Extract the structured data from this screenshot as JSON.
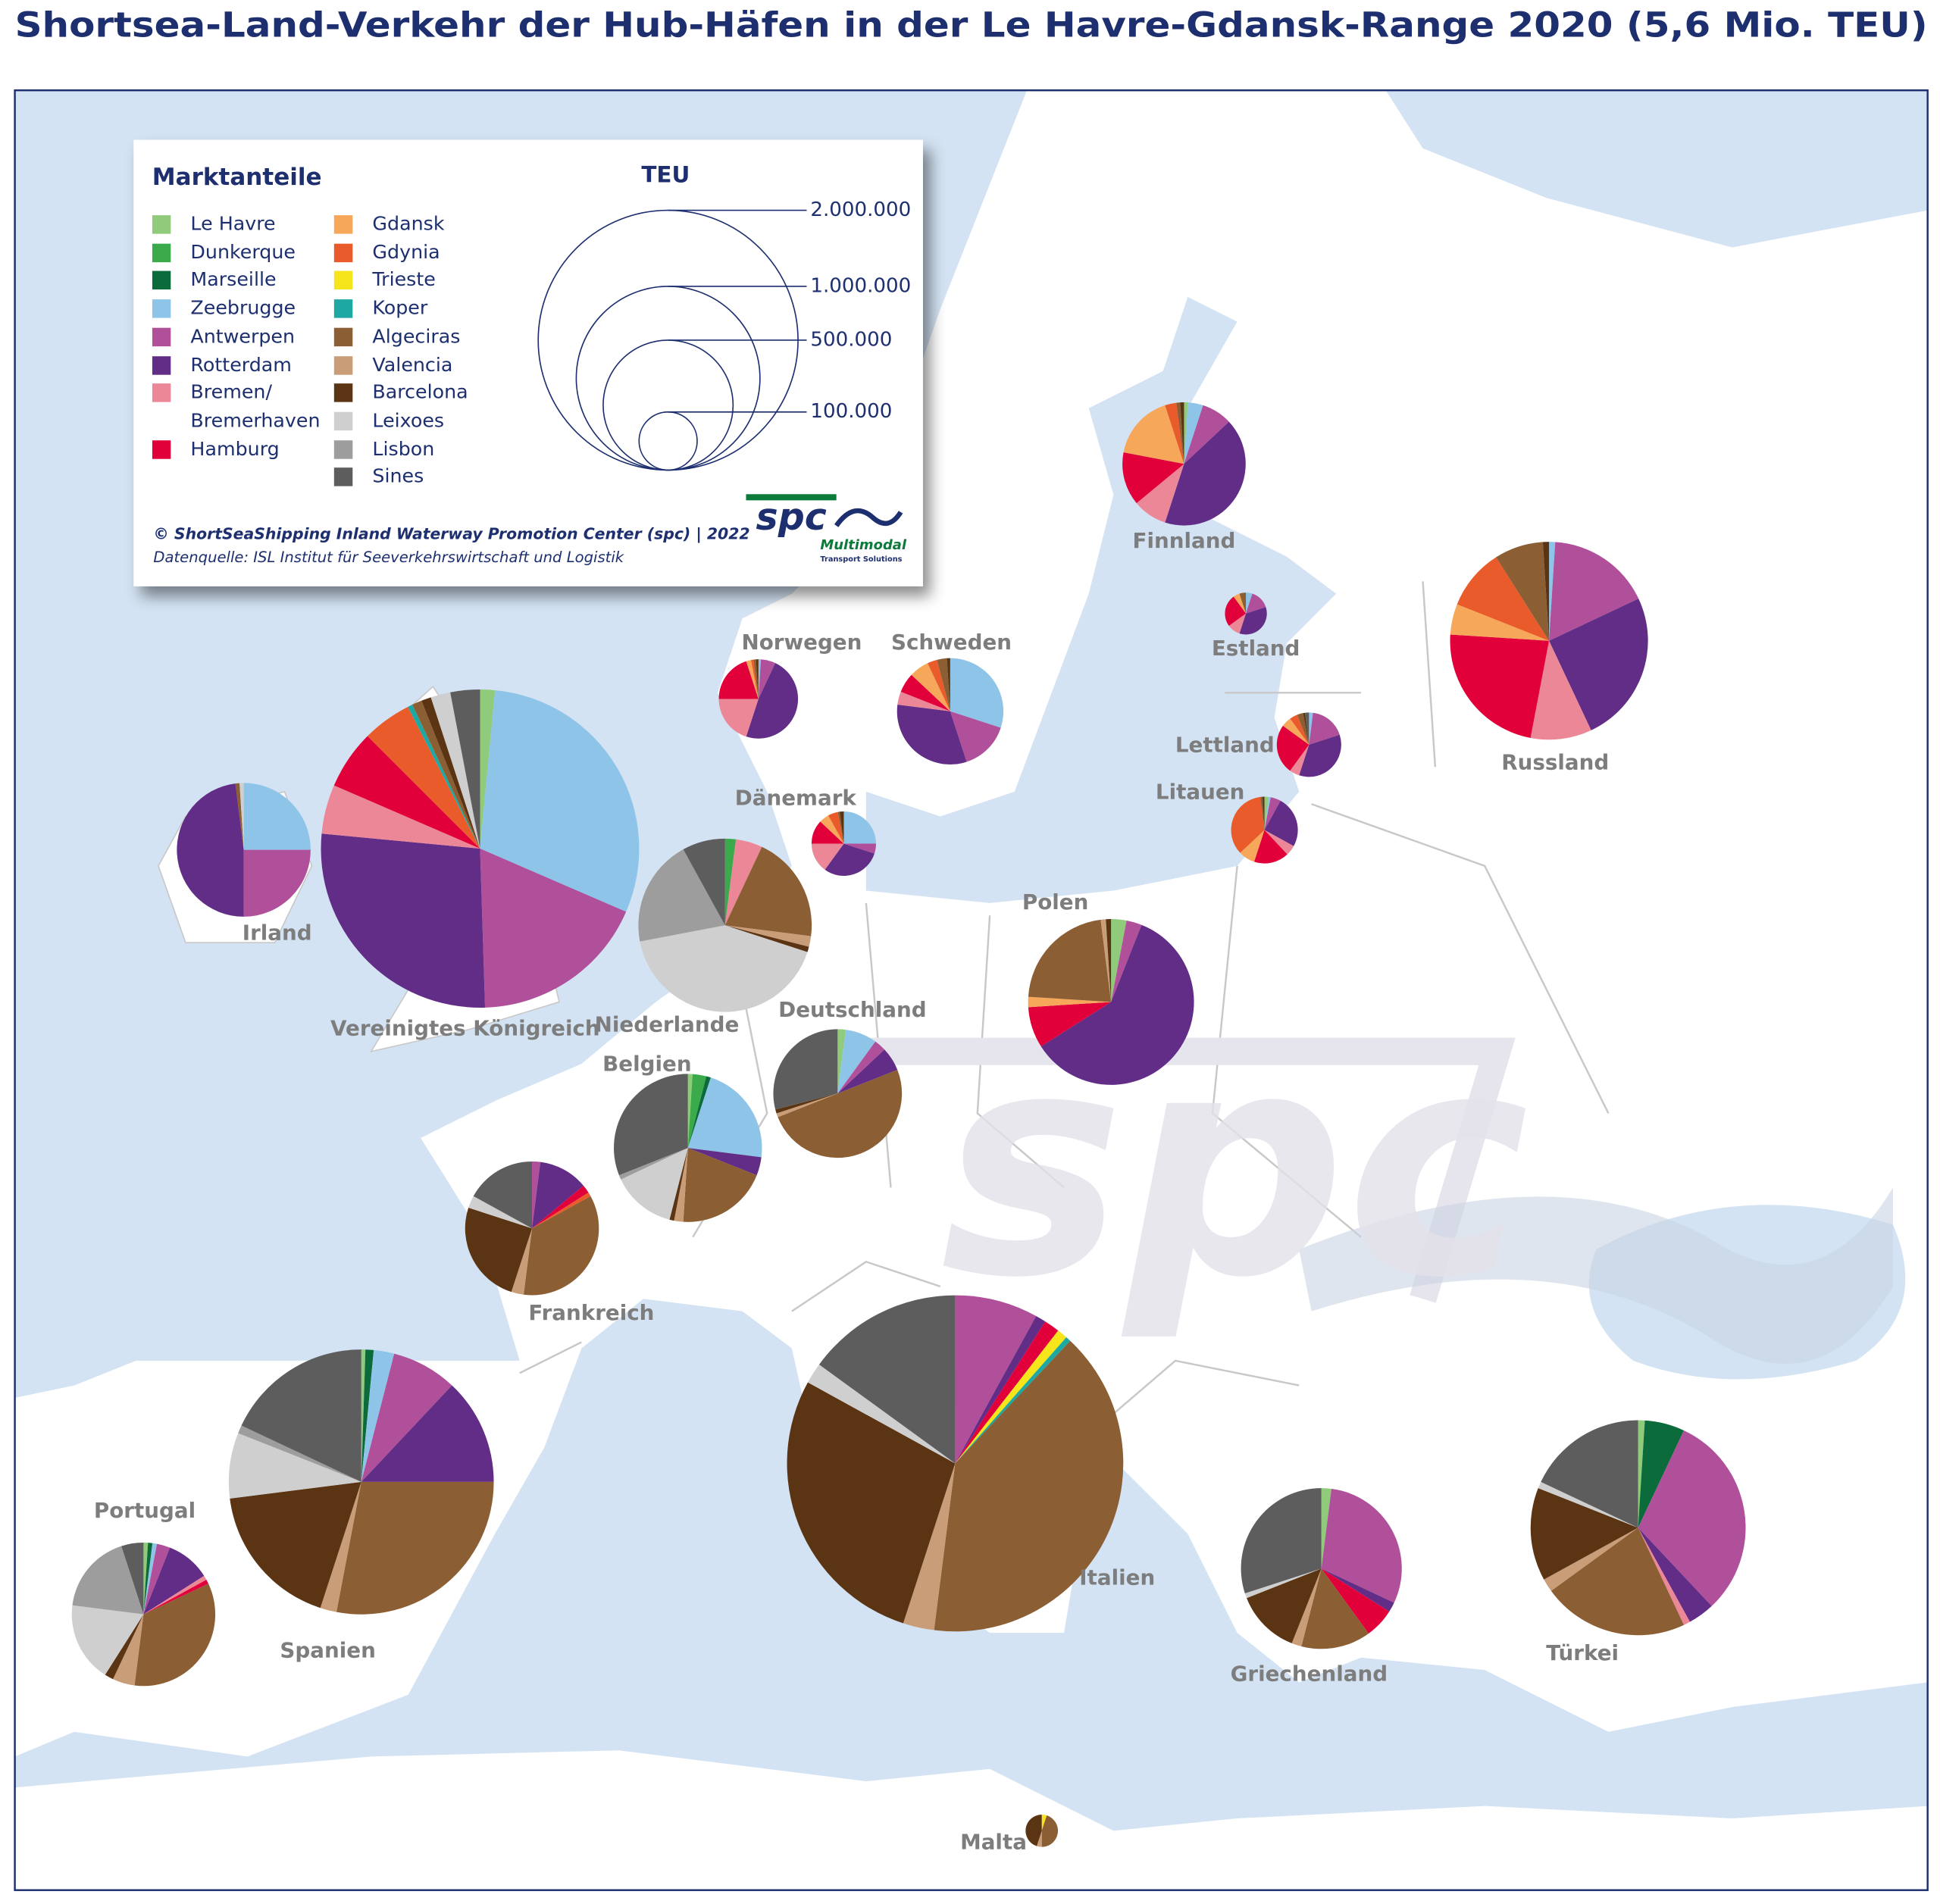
{
  "title": "Shortsea-Land-Verkehr der Hub-Häfen in der Le Havre-Gdansk-Range 2020 (5,6 Mio. TEU)",
  "legend": {
    "title": "Marktanteile",
    "ports": [
      {
        "name": "Le Havre",
        "color": "#8fcb7a"
      },
      {
        "name": "Dunkerque",
        "color": "#3aaa4a"
      },
      {
        "name": "Marseille",
        "color": "#0b6b3a"
      },
      {
        "name": "Zeebrugge",
        "color": "#8ec4e8"
      },
      {
        "name": "Antwerpen",
        "color": "#b04f9a"
      },
      {
        "name": "Rotterdam",
        "color": "#622d86"
      },
      {
        "name": "Bremen/ Bremerhaven",
        "color": "#ec8797"
      },
      {
        "name": "Hamburg",
        "color": "#e2003a"
      },
      {
        "name": "Gdansk",
        "color": "#f6a75a"
      },
      {
        "name": "Gdynia",
        "color": "#ea5b2b"
      },
      {
        "name": "Trieste",
        "color": "#f5e51a"
      },
      {
        "name": "Koper",
        "color": "#1ea8a3"
      },
      {
        "name": "Algeciras",
        "color": "#8b5e34"
      },
      {
        "name": "Valencia",
        "color": "#c99d77"
      },
      {
        "name": "Barcelona",
        "color": "#5a3413"
      },
      {
        "name": "Leixoes",
        "color": "#cfcfcf"
      },
      {
        "name": "Lisbon",
        "color": "#9d9d9d"
      },
      {
        "name": "Sines",
        "color": "#5d5d5d"
      }
    ]
  },
  "size_legend": {
    "title": "TEU",
    "ticks": [
      {
        "value": 2000000,
        "label": "2.000.000"
      },
      {
        "value": 1000000,
        "label": "1.000.000"
      },
      {
        "value": 500000,
        "label": "500.000"
      },
      {
        "value": 100000,
        "label": "100.000"
      }
    ]
  },
  "credits": {
    "copyright": "© ShortSeaShipping Inland Waterway Promotion Center (spc) | 2022",
    "source": "Datenquelle: ISL Institut für Seeverkehrswirtschaft und Logistik"
  },
  "logo": {
    "name": "spc",
    "tagline": "Multimodal",
    "subtagline": "Transport Solutions"
  },
  "watermark": "spc",
  "countries": [
    {
      "name": "Finnland",
      "teu": 450000,
      "shares": [
        1,
        0,
        0,
        4,
        8,
        42,
        9,
        14,
        17,
        3,
        0,
        0,
        1,
        0,
        1,
        0,
        0,
        0
      ]
    },
    {
      "name": "Estland",
      "teu": 52000,
      "shares": [
        0,
        0,
        0,
        5,
        15,
        35,
        10,
        25,
        5,
        0,
        0,
        0,
        5,
        0,
        0,
        0,
        0,
        0
      ]
    },
    {
      "name": "Russland",
      "teu": 1160000,
      "shares": [
        0,
        0,
        0,
        1,
        17,
        25,
        10,
        23,
        5,
        10,
        0,
        0,
        8,
        0,
        1,
        0,
        0,
        0
      ]
    },
    {
      "name": "Norwegen",
      "teu": 186000,
      "shares": [
        0,
        0,
        0,
        1,
        6,
        48,
        20,
        20,
        2,
        1,
        0,
        0,
        1,
        0,
        1,
        0,
        0,
        0
      ]
    },
    {
      "name": "Schweden",
      "teu": 335000,
      "shares": [
        0,
        0,
        0,
        30,
        15,
        32,
        4,
        6,
        6,
        3,
        0,
        0,
        3,
        0,
        1,
        0,
        0,
        0
      ]
    },
    {
      "name": "Lettland",
      "teu": 123000,
      "shares": [
        0,
        0,
        0,
        2,
        18,
        35,
        5,
        25,
        5,
        4,
        0,
        0,
        3,
        0,
        1,
        0,
        0,
        2
      ]
    },
    {
      "name": "Litauen",
      "teu": 132000,
      "shares": [
        2,
        0,
        0,
        1,
        5,
        25,
        5,
        17,
        8,
        35,
        0,
        0,
        1,
        0,
        1,
        0,
        0,
        0
      ]
    },
    {
      "name": "Dänemark",
      "teu": 123000,
      "shares": [
        0,
        0,
        0,
        25,
        5,
        30,
        15,
        12,
        5,
        5,
        0,
        0,
        1,
        0,
        2,
        0,
        0,
        0
      ]
    },
    {
      "name": "Irland",
      "teu": 530000,
      "shares": [
        0,
        0,
        0,
        25,
        25,
        48,
        0,
        0,
        0,
        0,
        0,
        0,
        1,
        0,
        0,
        1,
        0,
        0
      ]
    },
    {
      "name": "Vereinigtes Königreich",
      "teu": 3000000,
      "shares": [
        1.5,
        0,
        0,
        30,
        18,
        27,
        5,
        6,
        0,
        5,
        0,
        0.5,
        1,
        0,
        1,
        2,
        0,
        3
      ]
    },
    {
      "name": "Niederlande",
      "teu": 890000,
      "shares": [
        0,
        2,
        0,
        0,
        0,
        0,
        5,
        0,
        0,
        0,
        0,
        0,
        20,
        2,
        1,
        42,
        20,
        8
      ]
    },
    {
      "name": "Polen",
      "teu": 815000,
      "shares": [
        3,
        0,
        0,
        0,
        3,
        60,
        0,
        8,
        2,
        0,
        0,
        0,
        22,
        1,
        1,
        0,
        0,
        0
      ]
    },
    {
      "name": "Deutschland",
      "teu": 490000,
      "shares": [
        2,
        0,
        0,
        8,
        3,
        6,
        0,
        0,
        0,
        0,
        0,
        0,
        50,
        1,
        1,
        0,
        0,
        29
      ]
    },
    {
      "name": "Belgien",
      "teu": 650000,
      "shares": [
        1,
        3,
        1,
        22,
        0,
        4,
        0,
        0,
        0,
        0,
        0,
        0,
        20,
        2,
        1,
        14,
        1,
        31
      ]
    },
    {
      "name": "Frankreich",
      "teu": 530000,
      "shares": [
        0,
        0,
        0,
        0,
        2,
        12,
        0,
        2,
        0,
        1,
        0,
        0,
        35,
        3,
        25,
        3,
        0,
        17
      ]
    },
    {
      "name": "Spanien",
      "teu": 2080000,
      "shares": [
        0.5,
        0,
        1,
        2.5,
        8,
        13,
        0,
        0,
        0,
        0,
        0,
        0,
        28,
        2,
        18,
        8,
        1,
        18
      ]
    },
    {
      "name": "Portugal",
      "teu": 610000,
      "shares": [
        1,
        0,
        1,
        1,
        3,
        10,
        1,
        1,
        0,
        0,
        0,
        0,
        34,
        5,
        2,
        18,
        18,
        5
      ]
    },
    {
      "name": "Italien",
      "teu": 3350000,
      "shares": [
        0,
        0,
        0,
        0,
        8,
        1,
        0,
        1.5,
        0,
        0,
        1,
        0.5,
        40,
        3,
        28,
        2,
        0,
        15
      ]
    },
    {
      "name": "Griechenland",
      "teu": 766000,
      "shares": [
        2,
        0,
        0,
        0,
        30,
        2,
        0,
        6,
        0,
        0,
        0,
        0,
        14,
        2,
        13,
        1,
        0,
        30
      ]
    },
    {
      "name": "Türkei",
      "teu": 1370000,
      "shares": [
        1,
        0,
        6,
        0,
        31,
        4,
        1,
        0,
        0,
        0,
        0,
        0,
        22,
        2,
        14,
        1,
        0,
        18
      ]
    },
    {
      "name": "Malta",
      "teu": 31000,
      "shares": [
        0,
        0,
        0,
        0,
        0,
        0,
        0,
        0,
        0,
        0,
        5,
        0,
        45,
        5,
        45,
        0,
        0,
        0
      ]
    }
  ]
}
